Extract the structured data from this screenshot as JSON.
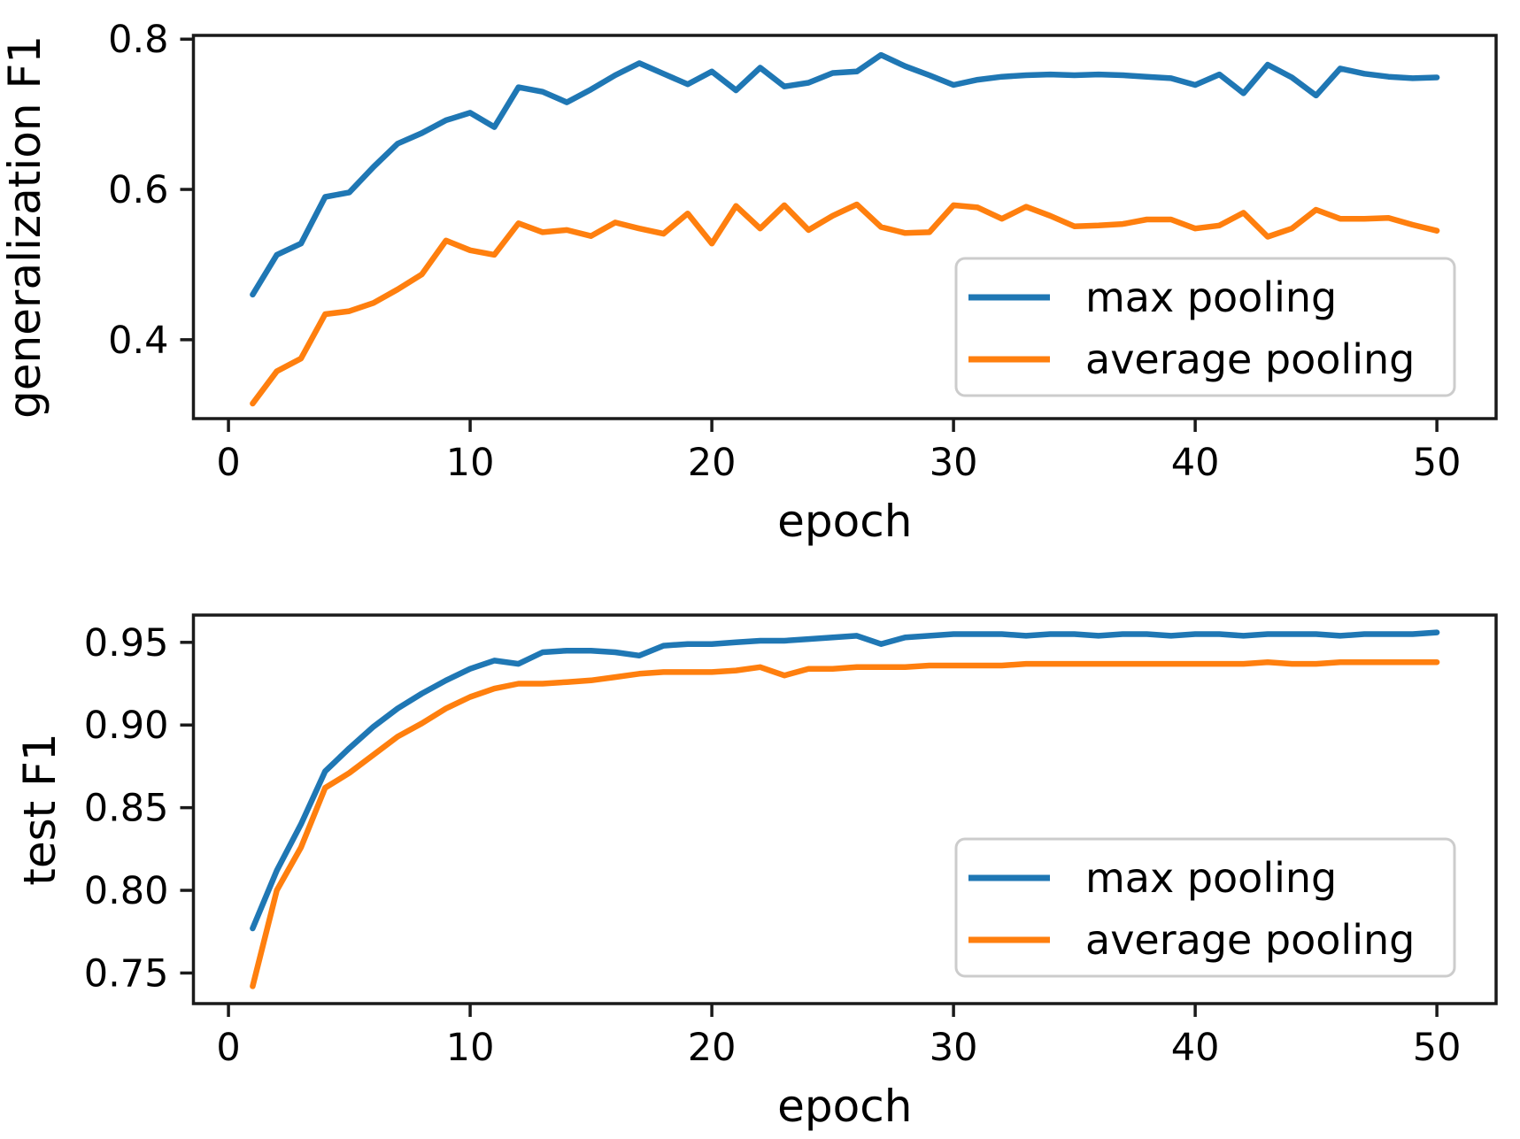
{
  "figure": {
    "background_color": "#ffffff",
    "text_color": "#000000",
    "spine_color": "#1a1a1a",
    "accent_blue": "#1f77b4",
    "accent_orange": "#ff7f0e"
  },
  "chart_data": {
    "type": "line",
    "x": [
      1,
      2,
      3,
      4,
      5,
      6,
      7,
      8,
      9,
      10,
      11,
      12,
      13,
      14,
      15,
      16,
      17,
      18,
      19,
      20,
      21,
      22,
      23,
      24,
      25,
      26,
      27,
      28,
      29,
      30,
      31,
      32,
      33,
      34,
      35,
      36,
      37,
      38,
      39,
      40,
      41,
      42,
      43,
      44,
      45,
      46,
      47,
      48,
      49,
      50
    ],
    "xlabel": "epoch",
    "xticks": [
      0,
      10,
      20,
      30,
      40,
      50
    ],
    "xtick_labels": [
      "0",
      "10",
      "20",
      "30",
      "40",
      "50"
    ],
    "xlim": [
      -1.45,
      52.45
    ],
    "grid": "off",
    "legend_position": "right-inside",
    "legend_entries": [
      "max pooling",
      "average pooling"
    ],
    "charts": [
      {
        "title": "",
        "ylabel": "generalization F1",
        "ylim": [
          0.295,
          0.805
        ],
        "yticks": [
          0.4,
          0.6,
          0.8
        ],
        "ytick_labels": [
          "0.4",
          "0.6",
          "0.8"
        ],
        "series": [
          {
            "name": "max pooling",
            "color": "#1f77b4",
            "values": [
              0.46,
              0.513,
              0.528,
              0.59,
              0.596,
              0.63,
              0.661,
              0.675,
              0.692,
              0.702,
              0.683,
              0.736,
              0.73,
              0.716,
              0.733,
              0.752,
              0.768,
              0.754,
              0.74,
              0.757,
              0.732,
              0.762,
              0.737,
              0.742,
              0.755,
              0.757,
              0.779,
              0.764,
              0.752,
              0.739,
              0.746,
              0.75,
              0.752,
              0.753,
              0.752,
              0.753,
              0.752,
              0.75,
              0.748,
              0.739,
              0.753,
              0.728,
              0.766,
              0.749,
              0.725,
              0.761,
              0.754,
              0.75,
              0.748,
              0.749
            ]
          },
          {
            "name": "average pooling",
            "color": "#ff7f0e",
            "values": [
              0.315,
              0.358,
              0.375,
              0.434,
              0.438,
              0.449,
              0.467,
              0.487,
              0.532,
              0.519,
              0.513,
              0.555,
              0.543,
              0.546,
              0.538,
              0.556,
              0.548,
              0.541,
              0.568,
              0.528,
              0.578,
              0.548,
              0.579,
              0.546,
              0.565,
              0.58,
              0.55,
              0.542,
              0.543,
              0.579,
              0.576,
              0.561,
              0.577,
              0.565,
              0.551,
              0.552,
              0.554,
              0.56,
              0.56,
              0.548,
              0.552,
              0.569,
              0.537,
              0.548,
              0.573,
              0.561,
              0.561,
              0.562,
              0.553,
              0.545
            ]
          }
        ]
      },
      {
        "title": "",
        "ylabel": "test F1",
        "ylim": [
          0.7315,
          0.9665
        ],
        "yticks": [
          0.75,
          0.8,
          0.85,
          0.9,
          0.95
        ],
        "ytick_labels": [
          "0.75",
          "0.80",
          "0.85",
          "0.90",
          "0.95"
        ],
        "series": [
          {
            "name": "max pooling",
            "color": "#1f77b4",
            "values": [
              0.777,
              0.812,
              0.84,
              0.872,
              0.886,
              0.899,
              0.91,
              0.919,
              0.927,
              0.934,
              0.939,
              0.937,
              0.944,
              0.945,
              0.945,
              0.944,
              0.942,
              0.948,
              0.949,
              0.949,
              0.95,
              0.951,
              0.951,
              0.952,
              0.953,
              0.954,
              0.949,
              0.953,
              0.954,
              0.955,
              0.955,
              0.955,
              0.954,
              0.955,
              0.955,
              0.954,
              0.955,
              0.955,
              0.954,
              0.955,
              0.955,
              0.954,
              0.955,
              0.955,
              0.955,
              0.954,
              0.955,
              0.955,
              0.955,
              0.956
            ]
          },
          {
            "name": "average pooling",
            "color": "#ff7f0e",
            "values": [
              0.742,
              0.8,
              0.826,
              0.862,
              0.871,
              0.882,
              0.893,
              0.901,
              0.91,
              0.917,
              0.922,
              0.925,
              0.925,
              0.926,
              0.927,
              0.929,
              0.931,
              0.932,
              0.932,
              0.932,
              0.933,
              0.935,
              0.93,
              0.934,
              0.934,
              0.935,
              0.935,
              0.935,
              0.936,
              0.936,
              0.936,
              0.936,
              0.937,
              0.937,
              0.937,
              0.937,
              0.937,
              0.937,
              0.937,
              0.937,
              0.937,
              0.937,
              0.938,
              0.937,
              0.937,
              0.938,
              0.938,
              0.938,
              0.938,
              0.938
            ]
          }
        ]
      }
    ]
  }
}
